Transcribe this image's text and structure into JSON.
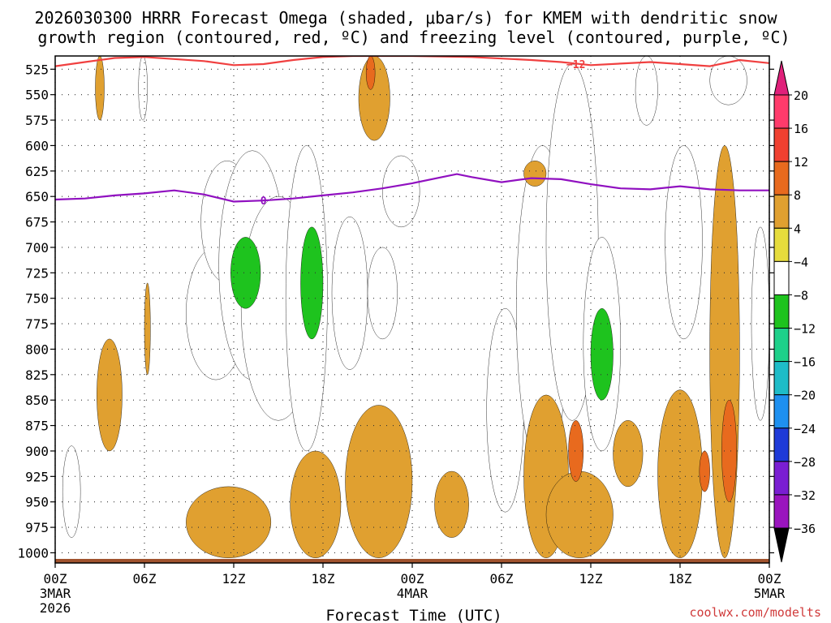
{
  "chart_data": {
    "type": "heatmap",
    "title_line1": "2026030300 HRRR Forecast Omega (shaded, μbar/s) for KMEM with dendritic snow",
    "title_line2": "growth region (contoured, red, ºC) and freezing level (contoured, purple, ºC)",
    "xlabel": "Forecast Time (UTC)",
    "credit": "coolwx.com/modelts",
    "x_range_hours": [
      0,
      48
    ],
    "y_range_mb": [
      1010,
      512
    ],
    "y_ticks": [
      {
        "p": 525,
        "label": "525"
      },
      {
        "p": 550,
        "label": "550"
      },
      {
        "p": 575,
        "label": "575"
      },
      {
        "p": 600,
        "label": "600"
      },
      {
        "p": 625,
        "label": "625"
      },
      {
        "p": 650,
        "label": "650"
      },
      {
        "p": 675,
        "label": "675"
      },
      {
        "p": 700,
        "label": "700"
      },
      {
        "p": 725,
        "label": "725"
      },
      {
        "p": 750,
        "label": "750"
      },
      {
        "p": 775,
        "label": "775"
      },
      {
        "p": 800,
        "label": "800"
      },
      {
        "p": 825,
        "label": "825"
      },
      {
        "p": 850,
        "label": "850"
      },
      {
        "p": 875,
        "label": "875"
      },
      {
        "p": 900,
        "label": "900"
      },
      {
        "p": 925,
        "label": "925"
      },
      {
        "p": 950,
        "label": "950"
      },
      {
        "p": 975,
        "label": "975"
      },
      {
        "p": 1000,
        "label": "1000"
      }
    ],
    "x_ticks": [
      {
        "h": 0,
        "label": "00Z",
        "sub1": "3MAR",
        "sub2": "2026"
      },
      {
        "h": 6,
        "label": "06Z"
      },
      {
        "h": 12,
        "label": "12Z"
      },
      {
        "h": 18,
        "label": "18Z"
      },
      {
        "h": 24,
        "label": "00Z",
        "sub1": "4MAR"
      },
      {
        "h": 30,
        "label": "06Z"
      },
      {
        "h": 36,
        "label": "12Z"
      },
      {
        "h": 42,
        "label": "18Z"
      },
      {
        "h": 48,
        "label": "00Z",
        "sub1": "5MAR"
      }
    ],
    "colorbar": {
      "labels": [
        "20",
        "16",
        "12",
        "8",
        "4",
        "−4",
        "−8",
        "−12",
        "−16",
        "−20",
        "−24",
        "−28",
        "−32",
        "−36"
      ],
      "colors": [
        "#ff3b6b",
        "#f04030",
        "#e86a1e",
        "#e0a030",
        "#e6dc3c",
        "#ffffff",
        "#1ec31e",
        "#1ed08a",
        "#1ebcc8",
        "#1e90f0",
        "#1e3ad8",
        "#7a1ed2",
        "#9a14be",
        "#a8a8a8"
      ],
      "top_color": "#e0207a",
      "bottom_color": "#000000"
    },
    "freezing_level": {
      "label": "0",
      "color": "#9010c0",
      "points": [
        [
          0,
          653
        ],
        [
          2,
          652
        ],
        [
          4,
          649
        ],
        [
          6,
          647
        ],
        [
          8,
          644
        ],
        [
          10,
          648
        ],
        [
          12,
          655
        ],
        [
          14,
          654
        ],
        [
          16,
          652
        ],
        [
          18,
          649
        ],
        [
          20,
          646
        ],
        [
          22,
          642
        ],
        [
          24,
          637
        ],
        [
          26,
          631
        ],
        [
          27,
          628
        ],
        [
          28,
          631
        ],
        [
          30,
          636
        ],
        [
          32,
          632
        ],
        [
          34,
          633
        ],
        [
          36,
          638
        ],
        [
          38,
          642
        ],
        [
          40,
          643
        ],
        [
          42,
          640
        ],
        [
          44,
          643
        ],
        [
          46,
          644
        ],
        [
          48,
          644
        ]
      ]
    },
    "dendritic_contour": {
      "label": "−12",
      "color": "#f04040",
      "points": [
        [
          0,
          522
        ],
        [
          2,
          518
        ],
        [
          4,
          514
        ],
        [
          6,
          513
        ],
        [
          8,
          515
        ],
        [
          10,
          517
        ],
        [
          12,
          521
        ],
        [
          14,
          520
        ],
        [
          16,
          516
        ],
        [
          18,
          513
        ],
        [
          20,
          512
        ],
        [
          24,
          512
        ],
        [
          28,
          513
        ],
        [
          32,
          516
        ],
        [
          34,
          518
        ],
        [
          36,
          521
        ],
        [
          40,
          518
        ],
        [
          42,
          520
        ],
        [
          44,
          522
        ],
        [
          46,
          516
        ],
        [
          48,
          519
        ]
      ]
    },
    "omega_regions": [
      {
        "value": -6,
        "x": [
          8.8,
          12.8
        ],
        "p": [
          700,
          830
        ]
      },
      {
        "value": -6,
        "x": [
          9.8,
          13.3
        ],
        "p": [
          615,
          735
        ]
      },
      {
        "value": -6,
        "x": [
          11.0,
          15.5
        ],
        "p": [
          605,
          830
        ]
      },
      {
        "value": -6,
        "x": [
          12.5,
          17.5
        ],
        "p": [
          650,
          870
        ]
      },
      {
        "value": -6,
        "x": [
          15.5,
          18.3
        ],
        "p": [
          600,
          900
        ]
      },
      {
        "value": -6,
        "x": [
          18.6,
          21.0
        ],
        "p": [
          670,
          820
        ]
      },
      {
        "value": -6,
        "x": [
          21.0,
          23.0
        ],
        "p": [
          700,
          790
        ]
      },
      {
        "value": -6,
        "x": [
          22.0,
          24.5
        ],
        "p": [
          610,
          680
        ]
      },
      {
        "value": -6,
        "x": [
          29.0,
          31.5
        ],
        "p": [
          760,
          960
        ]
      },
      {
        "value": -6,
        "x": [
          31.0,
          34.5
        ],
        "p": [
          600,
          920
        ]
      },
      {
        "value": -6,
        "x": [
          33.0,
          36.5
        ],
        "p": [
          520,
          870
        ]
      },
      {
        "value": -6,
        "x": [
          35.5,
          38.0
        ],
        "p": [
          690,
          900
        ]
      },
      {
        "value": -6,
        "x": [
          39.0,
          40.5
        ],
        "p": [
          512,
          580
        ]
      },
      {
        "value": -6,
        "x": [
          41.0,
          43.5
        ],
        "p": [
          600,
          790
        ]
      },
      {
        "value": -6,
        "x": [
          44.0,
          46.5
        ],
        "p": [
          512,
          560
        ]
      },
      {
        "value": -6,
        "x": [
          46.8,
          48.0
        ],
        "p": [
          680,
          870
        ]
      },
      {
        "value": -6,
        "x": [
          0.5,
          1.7
        ],
        "p": [
          895,
          985
        ]
      },
      {
        "value": -6,
        "x": [
          5.6,
          6.2
        ],
        "p": [
          512,
          575
        ]
      },
      {
        "value": -10,
        "x": [
          11.8,
          13.8
        ],
        "p": [
          690,
          760
        ]
      },
      {
        "value": -10,
        "x": [
          16.5,
          18.0
        ],
        "p": [
          680,
          790
        ]
      },
      {
        "value": -10,
        "x": [
          36.0,
          37.5
        ],
        "p": [
          760,
          850
        ]
      },
      {
        "value": 6,
        "x": [
          8.8,
          14.5
        ],
        "p": [
          935,
          1005
        ]
      },
      {
        "value": 6,
        "x": [
          15.8,
          19.2
        ],
        "p": [
          900,
          1005
        ]
      },
      {
        "value": 6,
        "x": [
          19.5,
          24.0
        ],
        "p": [
          855,
          1005
        ]
      },
      {
        "value": 6,
        "x": [
          20.4,
          22.5
        ],
        "p": [
          512,
          595
        ]
      },
      {
        "value": 6,
        "x": [
          25.5,
          27.8
        ],
        "p": [
          920,
          985
        ]
      },
      {
        "value": 6,
        "x": [
          31.5,
          34.5
        ],
        "p": [
          845,
          1005
        ]
      },
      {
        "value": 6,
        "x": [
          33.0,
          37.5
        ],
        "p": [
          920,
          1005
        ]
      },
      {
        "value": 6,
        "x": [
          37.5,
          39.5
        ],
        "p": [
          870,
          935
        ]
      },
      {
        "value": 6,
        "x": [
          40.5,
          43.5
        ],
        "p": [
          840,
          1005
        ]
      },
      {
        "value": 6,
        "x": [
          44.0,
          46.0
        ],
        "p": [
          600,
          1005
        ]
      },
      {
        "value": 6,
        "x": [
          2.8,
          4.5
        ],
        "p": [
          790,
          900
        ]
      },
      {
        "value": 6,
        "x": [
          2.7,
          3.3
        ],
        "p": [
          512,
          575
        ]
      },
      {
        "value": 6,
        "x": [
          6.0,
          6.4
        ],
        "p": [
          735,
          825
        ]
      },
      {
        "value": 6,
        "x": [
          31.5,
          33.0
        ],
        "p": [
          615,
          640
        ]
      },
      {
        "value": 10,
        "x": [
          20.9,
          21.5
        ],
        "p": [
          512,
          545
        ]
      },
      {
        "value": 10,
        "x": [
          34.5,
          35.5
        ],
        "p": [
          870,
          930
        ]
      },
      {
        "value": 10,
        "x": [
          44.8,
          45.8
        ],
        "p": [
          850,
          950
        ]
      },
      {
        "value": 10,
        "x": [
          43.3,
          44.0
        ],
        "p": [
          900,
          940
        ]
      }
    ]
  }
}
